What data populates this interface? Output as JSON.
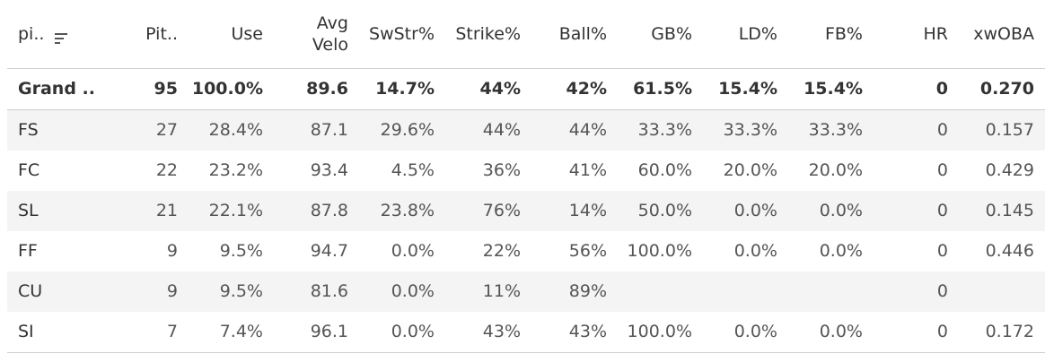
{
  "table": {
    "headers": {
      "pitch": "pi..",
      "pitches": "Pit..",
      "use": "Use",
      "avg_velo_line1": "Avg",
      "avg_velo_line2": "Velo",
      "swstr": "SwStr%",
      "strike": "Strike%",
      "ball": "Ball%",
      "gb": "GB%",
      "ld": "LD%",
      "fb": "FB%",
      "hr": "HR",
      "xwoba": "xwOBA"
    },
    "sort_icon": "sort-descending-icon",
    "grand_total": {
      "pitch": "Grand ..",
      "pitches": "95",
      "use": "100.0%",
      "avg_velo": "89.6",
      "swstr": "14.7%",
      "strike": "44%",
      "ball": "42%",
      "gb": "61.5%",
      "ld": "15.4%",
      "fb": "15.4%",
      "hr": "0",
      "xwoba": "0.270"
    },
    "rows": [
      {
        "pitch": "FS",
        "pitches": "27",
        "use": "28.4%",
        "avg_velo": "87.1",
        "swstr": "29.6%",
        "strike": "44%",
        "ball": "44%",
        "gb": "33.3%",
        "ld": "33.3%",
        "fb": "33.3%",
        "hr": "0",
        "xwoba": "0.157"
      },
      {
        "pitch": "FC",
        "pitches": "22",
        "use": "23.2%",
        "avg_velo": "93.4",
        "swstr": "4.5%",
        "strike": "36%",
        "ball": "41%",
        "gb": "60.0%",
        "ld": "20.0%",
        "fb": "20.0%",
        "hr": "0",
        "xwoba": "0.429"
      },
      {
        "pitch": "SL",
        "pitches": "21",
        "use": "22.1%",
        "avg_velo": "87.8",
        "swstr": "23.8%",
        "strike": "76%",
        "ball": "14%",
        "gb": "50.0%",
        "ld": "0.0%",
        "fb": "0.0%",
        "hr": "0",
        "xwoba": "0.145"
      },
      {
        "pitch": "FF",
        "pitches": "9",
        "use": "9.5%",
        "avg_velo": "94.7",
        "swstr": "0.0%",
        "strike": "22%",
        "ball": "56%",
        "gb": "100.0%",
        "ld": "0.0%",
        "fb": "0.0%",
        "hr": "0",
        "xwoba": "0.446"
      },
      {
        "pitch": "CU",
        "pitches": "9",
        "use": "9.5%",
        "avg_velo": "81.6",
        "swstr": "0.0%",
        "strike": "11%",
        "ball": "89%",
        "gb": "",
        "ld": "",
        "fb": "",
        "hr": "0",
        "xwoba": ""
      },
      {
        "pitch": "SI",
        "pitches": "7",
        "use": "7.4%",
        "avg_velo": "96.1",
        "swstr": "0.0%",
        "strike": "43%",
        "ball": "43%",
        "gb": "100.0%",
        "ld": "0.0%",
        "fb": "0.0%",
        "hr": "0",
        "xwoba": "0.172"
      }
    ]
  }
}
